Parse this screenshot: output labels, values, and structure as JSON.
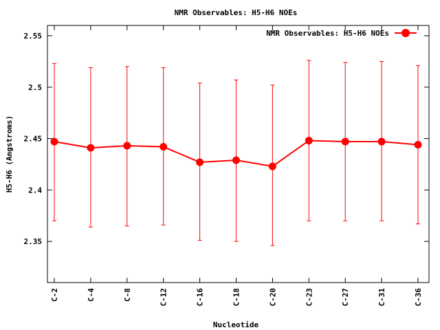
{
  "chart_data": {
    "type": "line",
    "title": "NMR Observables: H5-H6 NOEs",
    "xlabel": "Nucleotide",
    "ylabel": "H5-H6 (Angstroms)",
    "ylim": [
      2.31,
      2.56
    ],
    "yticks": [
      2.35,
      2.4,
      2.45,
      2.5,
      2.55
    ],
    "ytick_labels": [
      "2.35",
      "2.4",
      "2.45",
      "2.5",
      "2.55"
    ],
    "categories": [
      "C-2",
      "C-4",
      "C-8",
      "C-12",
      "C-16",
      "C-18",
      "C-20",
      "C-23",
      "C-27",
      "C-31",
      "C-36"
    ],
    "legend_position": "top-right",
    "grid": false,
    "series": [
      {
        "name": "NMR Observables: H5-H6 NOEs",
        "color": "#ff0000",
        "values": [
          2.447,
          2.441,
          2.443,
          2.442,
          2.427,
          2.429,
          2.423,
          2.448,
          2.447,
          2.447,
          2.444
        ],
        "err_low": [
          2.37,
          2.364,
          2.365,
          2.366,
          2.351,
          2.35,
          2.346,
          2.37,
          2.37,
          2.37,
          2.367
        ],
        "err_high": [
          2.523,
          2.519,
          2.52,
          2.519,
          2.504,
          2.507,
          2.502,
          2.526,
          2.524,
          2.525,
          2.521
        ]
      }
    ]
  }
}
